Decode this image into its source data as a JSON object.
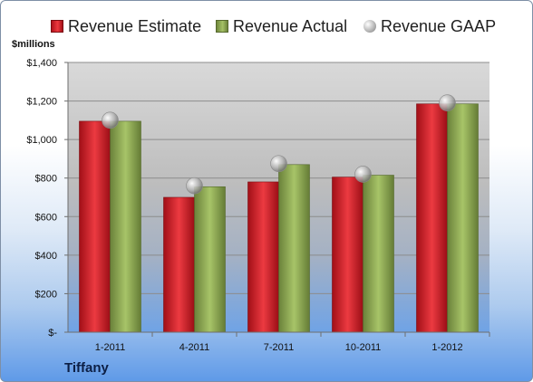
{
  "legend": {
    "estimate": "Revenue Estimate",
    "actual": "Revenue Actual",
    "gaap": "Revenue GAAP"
  },
  "unit_label": "$millions",
  "company": "Tiffany",
  "colors": {
    "estimate": "#d01d24",
    "actual": "#8eab52",
    "gaap": "#b8b8b8"
  },
  "chart_data": {
    "type": "bar",
    "categories": [
      "1-2011",
      "4-2011",
      "7-2011",
      "10-2011",
      "1-2012"
    ],
    "series": [
      {
        "name": "Revenue Estimate",
        "type": "bar",
        "values": [
          1095,
          700,
          780,
          805,
          1185
        ]
      },
      {
        "name": "Revenue Actual",
        "type": "bar",
        "values": [
          1095,
          755,
          870,
          815,
          1185
        ]
      },
      {
        "name": "Revenue GAAP",
        "type": "scatter",
        "values": [
          1100,
          760,
          875,
          820,
          1190
        ]
      }
    ],
    "ylabel": "$millions",
    "ylim": [
      0,
      1400
    ],
    "y_ticks": [
      0,
      200,
      400,
      600,
      800,
      1000,
      1200,
      1400
    ],
    "y_tick_labels": [
      "$-",
      "$200",
      "$400",
      "$600",
      "$800",
      "$1,000",
      "$1,200",
      "$1,400"
    ],
    "grid": true,
    "legend_position": "top"
  }
}
